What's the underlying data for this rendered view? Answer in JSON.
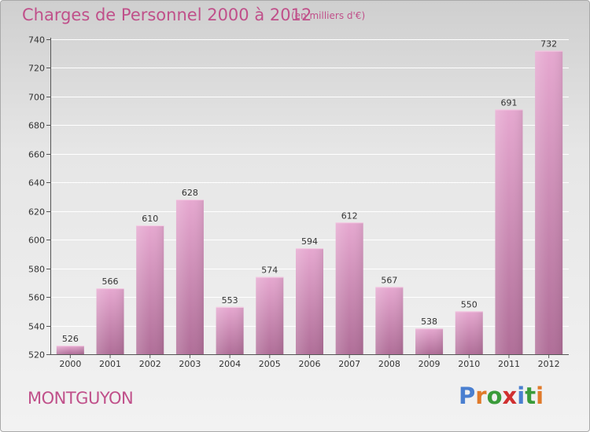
{
  "header": {
    "title": "Charges de Personnel 2000 à 2012",
    "subtitle": "(en milliers d'€)"
  },
  "footer": {
    "place": "MONTGUYON",
    "logo": {
      "text": "Proxiti",
      "letter_colors": [
        "#4a7fd0",
        "#e07a2a",
        "#3a9b3a",
        "#d03030",
        "#4a7fd0",
        "#3a9b3a",
        "#e07a2a"
      ]
    }
  },
  "colors": {
    "bar_top": "#e6a8d0",
    "bar_bottom": "#b06e98",
    "accent": "#c0508a"
  },
  "chart_data": {
    "type": "bar",
    "title": "Charges de Personnel 2000 à 2012",
    "subtitle": "(en milliers d'€)",
    "xlabel": "",
    "ylabel": "",
    "categories": [
      "2000",
      "2001",
      "2002",
      "2003",
      "2004",
      "2005",
      "2006",
      "2007",
      "2008",
      "2009",
      "2010",
      "2011",
      "2012"
    ],
    "values": [
      526,
      566,
      610,
      628,
      553,
      574,
      594,
      612,
      567,
      538,
      550,
      691,
      732
    ],
    "ylim": [
      520,
      740
    ],
    "yticks": [
      520,
      540,
      560,
      580,
      600,
      620,
      640,
      660,
      680,
      700,
      720,
      740
    ],
    "grid": true
  }
}
